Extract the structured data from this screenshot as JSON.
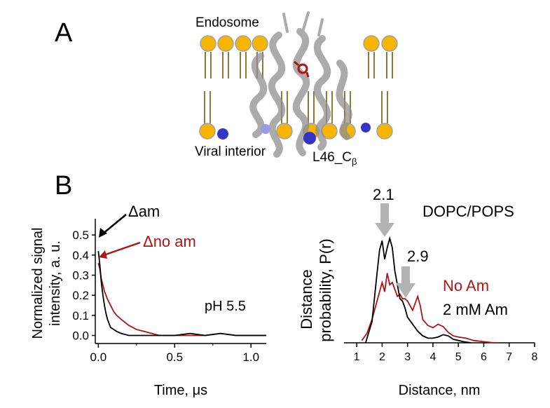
{
  "panelA": {
    "letter": "A",
    "label_endosome": "Endosome",
    "label_viral": "Viral interior",
    "label_residue": "L46_C",
    "label_residue_sub": "β"
  },
  "panelB": {
    "letter": "B"
  },
  "colors": {
    "black": "#000000",
    "red": "#b01313",
    "arrow_grey": "#b3b3b3",
    "lipid_head": "#f7b500",
    "lipid_tail": "#8c7a3a",
    "spin_label": "#3434c8"
  },
  "chart_data": [
    {
      "type": "line",
      "xlabel": "Time, μs",
      "ylabel": "Normalized signal intensity, a. u.",
      "xlim": [
        -0.02,
        1.1
      ],
      "ylim": [
        -0.04,
        0.56
      ],
      "xticks": [
        "0.0",
        "0.5",
        "1.0"
      ],
      "yticks": [
        "0.0",
        "0.1",
        "0.2",
        "0.3",
        "0.4",
        "0.5"
      ],
      "annotations": {
        "am": "Δam",
        "no_am": "Δno am",
        "ph": "pH 5.5"
      },
      "series": [
        {
          "name": "Δam",
          "color": "#000000",
          "x": [
            0.0,
            0.01,
            0.02,
            0.03,
            0.04,
            0.05,
            0.06,
            0.07,
            0.08,
            0.1,
            0.12,
            0.15,
            0.2,
            0.3,
            0.4,
            0.5,
            0.6,
            0.7,
            0.8,
            0.9,
            1.0,
            1.1
          ],
          "y": [
            0.42,
            0.35,
            0.26,
            0.2,
            0.15,
            0.11,
            0.08,
            0.06,
            0.04,
            0.03,
            0.02,
            0.01,
            0.0,
            0.0,
            0.0,
            0.0,
            0.01,
            0.0,
            0.01,
            0.0,
            0.0,
            0.0
          ]
        },
        {
          "name": "Δno am",
          "color": "#b01313",
          "x": [
            0.0,
            0.01,
            0.02,
            0.04,
            0.06,
            0.08,
            0.1,
            0.12,
            0.15,
            0.2,
            0.25,
            0.3,
            0.35,
            0.4,
            0.5,
            0.6,
            0.7,
            0.8,
            0.9,
            1.0,
            1.1
          ],
          "y": [
            0.36,
            0.33,
            0.28,
            0.22,
            0.18,
            0.15,
            0.12,
            0.1,
            0.08,
            0.05,
            0.03,
            0.02,
            0.01,
            0.0,
            0.0,
            0.0,
            0.0,
            0.01,
            0.0,
            0.0,
            0.0
          ]
        }
      ]
    },
    {
      "type": "line",
      "xlabel": "Distance, nm",
      "ylabel": "Distance probability, P(r)",
      "xlim": [
        1,
        8
      ],
      "ylim": [
        0,
        1
      ],
      "xticks": [
        "1",
        "2",
        "3",
        "4",
        "5",
        "6",
        "7",
        "8"
      ],
      "title": "DOPC/POPS",
      "annotations": {
        "peak1": "2.1",
        "peak2": "2.9"
      },
      "legend": [
        "No Am",
        "2 mM Am"
      ],
      "series": [
        {
          "name": "2 mM Am",
          "color": "#000000",
          "x": [
            1.35,
            1.6,
            1.8,
            1.9,
            2.0,
            2.1,
            2.2,
            2.3,
            2.4,
            2.5,
            2.6,
            2.7,
            2.8,
            2.9,
            3.0,
            3.2,
            3.4,
            3.6,
            3.8,
            4.0,
            4.2,
            4.4,
            4.6,
            4.8,
            5.0,
            5.2,
            5.5
          ],
          "y": [
            0.0,
            0.18,
            0.6,
            0.8,
            0.88,
            0.72,
            0.82,
            0.9,
            0.82,
            0.62,
            0.5,
            0.38,
            0.36,
            0.3,
            0.22,
            0.16,
            0.1,
            0.06,
            0.04,
            0.04,
            0.05,
            0.07,
            0.06,
            0.03,
            0.02,
            0.01,
            0.0
          ]
        },
        {
          "name": "No Am",
          "color": "#b01313",
          "x": [
            1.2,
            1.4,
            1.6,
            1.8,
            2.0,
            2.1,
            2.2,
            2.3,
            2.4,
            2.5,
            2.6,
            2.7,
            2.8,
            2.9,
            3.0,
            3.1,
            3.2,
            3.3,
            3.4,
            3.5,
            3.6,
            3.8,
            4.0,
            4.2,
            4.4,
            4.6,
            4.8,
            5.0,
            5.3,
            5.6,
            6.0,
            6.4,
            6.6
          ],
          "y": [
            0.02,
            0.08,
            0.2,
            0.36,
            0.52,
            0.44,
            0.6,
            0.5,
            0.52,
            0.46,
            0.4,
            0.42,
            0.38,
            0.38,
            0.36,
            0.32,
            0.28,
            0.34,
            0.4,
            0.32,
            0.2,
            0.15,
            0.13,
            0.16,
            0.14,
            0.09,
            0.06,
            0.05,
            0.04,
            0.02,
            0.01,
            0.0,
            0.0
          ]
        }
      ]
    }
  ]
}
